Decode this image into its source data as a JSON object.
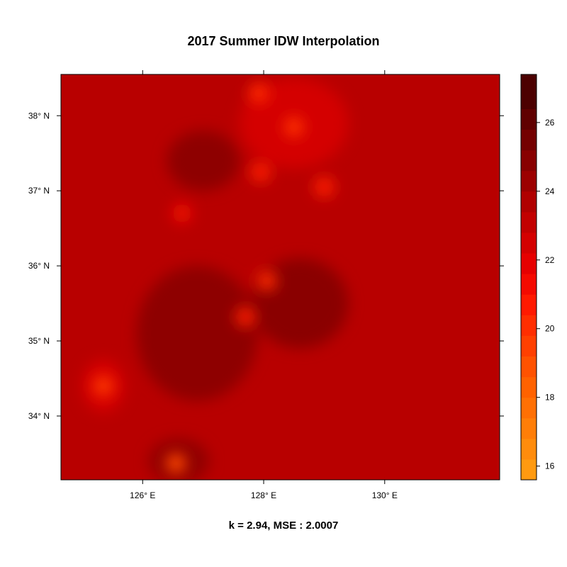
{
  "title": "2017 Summer IDW Interpolation",
  "subtitle": "k = 2.94, MSE : 2.0007",
  "x_ticks": [
    {
      "value": 126,
      "label": "126° E"
    },
    {
      "value": 128,
      "label": "128° E"
    },
    {
      "value": 130,
      "label": "130° E"
    }
  ],
  "y_ticks": [
    {
      "value": 38,
      "label": "38° N"
    },
    {
      "value": 37,
      "label": "37° N"
    },
    {
      "value": 36,
      "label": "36° N"
    },
    {
      "value": 35,
      "label": "35° N"
    },
    {
      "value": 34,
      "label": "34° N"
    }
  ],
  "x_range": [
    124.65,
    131.9
  ],
  "y_range": [
    33.15,
    38.55
  ],
  "colorbar": {
    "range": [
      15.6,
      27.4
    ],
    "ticks": [
      {
        "value": 16,
        "label": "16"
      },
      {
        "value": 18,
        "label": "18"
      },
      {
        "value": 20,
        "label": "20"
      },
      {
        "value": 22,
        "label": "22"
      },
      {
        "value": 24,
        "label": "24"
      },
      {
        "value": 26,
        "label": "26"
      }
    ],
    "levels": [
      {
        "from": 15.6,
        "to": 16.2,
        "color": "#ff9a10"
      },
      {
        "from": 16.2,
        "to": 16.8,
        "color": "#ff8c0c"
      },
      {
        "from": 16.8,
        "to": 17.4,
        "color": "#ff7e08"
      },
      {
        "from": 17.4,
        "to": 18.0,
        "color": "#ff7004"
      },
      {
        "from": 18.0,
        "to": 18.6,
        "color": "#ff6200"
      },
      {
        "from": 18.6,
        "to": 19.2,
        "color": "#ff5200"
      },
      {
        "from": 19.2,
        "to": 19.8,
        "color": "#ff4000"
      },
      {
        "from": 19.8,
        "to": 20.4,
        "color": "#ff2e00"
      },
      {
        "from": 20.4,
        "to": 21.0,
        "color": "#ff1a00"
      },
      {
        "from": 21.0,
        "to": 21.6,
        "color": "#f40a00"
      },
      {
        "from": 21.6,
        "to": 22.2,
        "color": "#e60000"
      },
      {
        "from": 22.2,
        "to": 22.8,
        "color": "#d40000"
      },
      {
        "from": 22.8,
        "to": 23.4,
        "color": "#c20000"
      },
      {
        "from": 23.4,
        "to": 24.0,
        "color": "#b00000"
      },
      {
        "from": 24.0,
        "to": 24.6,
        "color": "#9c0000"
      },
      {
        "from": 24.6,
        "to": 25.2,
        "color": "#880000"
      },
      {
        "from": 25.2,
        "to": 25.8,
        "color": "#740000"
      },
      {
        "from": 25.8,
        "to": 26.4,
        "color": "#600000"
      },
      {
        "from": 26.4,
        "to": 27.4,
        "color": "#4c0000"
      }
    ]
  },
  "background_color": "#b80000",
  "regions": [
    {
      "lon": 126.9,
      "lat": 35.1,
      "rx": 1.0,
      "ry": 0.9,
      "color": "#8e0000"
    },
    {
      "lon": 128.6,
      "lat": 35.5,
      "rx": 0.8,
      "ry": 0.6,
      "color": "#8a0000"
    },
    {
      "lon": 127.0,
      "lat": 37.4,
      "rx": 0.6,
      "ry": 0.4,
      "color": "#8e0000"
    },
    {
      "lon": 126.6,
      "lat": 33.4,
      "rx": 0.5,
      "ry": 0.3,
      "color": "#900000"
    },
    {
      "lon": 128.5,
      "lat": 37.9,
      "rx": 0.9,
      "ry": 0.6,
      "color": "#d40000"
    },
    {
      "lon": 125.35,
      "lat": 34.4,
      "rx": 0.35,
      "ry": 0.35,
      "color": "#d60000"
    }
  ],
  "hot_spots": [
    {
      "lon": 125.35,
      "lat": 34.4,
      "color": "#ff3a00"
    },
    {
      "lon": 126.55,
      "lat": 33.37,
      "color": "#ff4a00"
    },
    {
      "lon": 127.92,
      "lat": 38.3,
      "color": "#ff2a00"
    },
    {
      "lon": 128.5,
      "lat": 37.85,
      "color": "#ff3000"
    },
    {
      "lon": 127.95,
      "lat": 37.25,
      "color": "#ff2000"
    },
    {
      "lon": 129.0,
      "lat": 37.05,
      "color": "#ff2000"
    },
    {
      "lon": 128.05,
      "lat": 35.8,
      "color": "#ff2a00"
    },
    {
      "lon": 127.7,
      "lat": 35.32,
      "color": "#ff2000"
    },
    {
      "lon": 126.65,
      "lat": 36.7,
      "color": "#f00800"
    }
  ]
}
